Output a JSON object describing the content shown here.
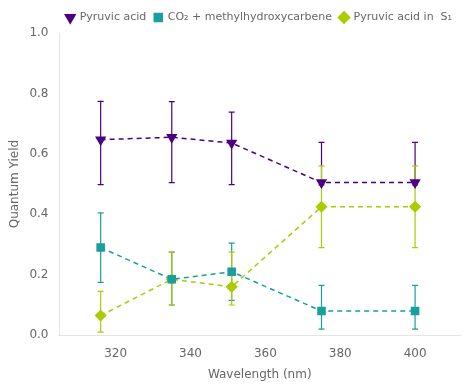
{
  "chart_data": {
    "type": "line",
    "x": [
      316,
      335,
      351,
      375,
      400
    ],
    "series": [
      {
        "name": "Pyruvic acid",
        "color": "#4b0082",
        "marker": "triangle_down",
        "line_style": "dashed",
        "values": [
          0.647,
          0.655,
          0.636,
          0.505,
          0.505
        ],
        "yerr_lo": [
          0.149,
          0.15,
          0.138,
          0.008,
          0.008
        ],
        "yerr_hi": [
          0.127,
          0.118,
          0.102,
          0.133,
          0.133
        ]
      },
      {
        "name": "CO₂ + methylhydroxycarbene",
        "color": "#1a9e9e",
        "marker": "square",
        "line_style": "dashed",
        "values": [
          0.29,
          0.185,
          0.21,
          0.08,
          0.08
        ],
        "yerr_lo": [
          0.115,
          0.085,
          0.095,
          0.06,
          0.06
        ],
        "yerr_hi": [
          0.115,
          0.09,
          0.095,
          0.085,
          0.085
        ]
      },
      {
        "name": "Pyruvic acid in  S₁",
        "color": "#aacc00",
        "marker": "diamond",
        "line_style": "dashed",
        "values": [
          0.065,
          0.185,
          0.16,
          0.425,
          0.425
        ],
        "yerr_lo": [
          0.055,
          0.085,
          0.06,
          0.135,
          0.135
        ],
        "yerr_hi": [
          0.08,
          0.09,
          0.115,
          0.135,
          0.135
        ]
      }
    ],
    "xlabel": "Wavelength (nm)",
    "ylabel": "Quantum Yield",
    "xlim": [
      305,
      412
    ],
    "ylim": [
      0,
      1
    ],
    "xticks": [
      320,
      340,
      360,
      380,
      400
    ],
    "yticks": [
      {
        "value": 0,
        "label": "0.0"
      },
      0.2,
      0.4,
      0.6,
      0.8,
      {
        "value": 1,
        "label": "1.0"
      }
    ],
    "grid": false,
    "legend": "upper right"
  }
}
